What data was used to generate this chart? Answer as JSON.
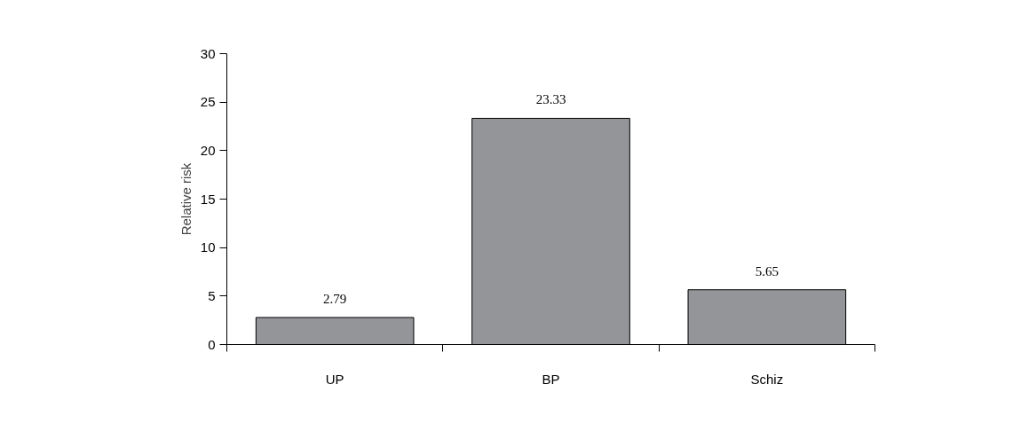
{
  "chart_data": {
    "type": "bar",
    "ylabel": "Relative risk",
    "categories": [
      "UP",
      "BP",
      "Schiz"
    ],
    "values": [
      2.79,
      23.33,
      5.65
    ],
    "color": "#939598",
    "ylim": [
      0,
      30
    ],
    "yticks": [
      0,
      5,
      10,
      15,
      20,
      25,
      30
    ],
    "grid": false,
    "data_labels": true
  }
}
